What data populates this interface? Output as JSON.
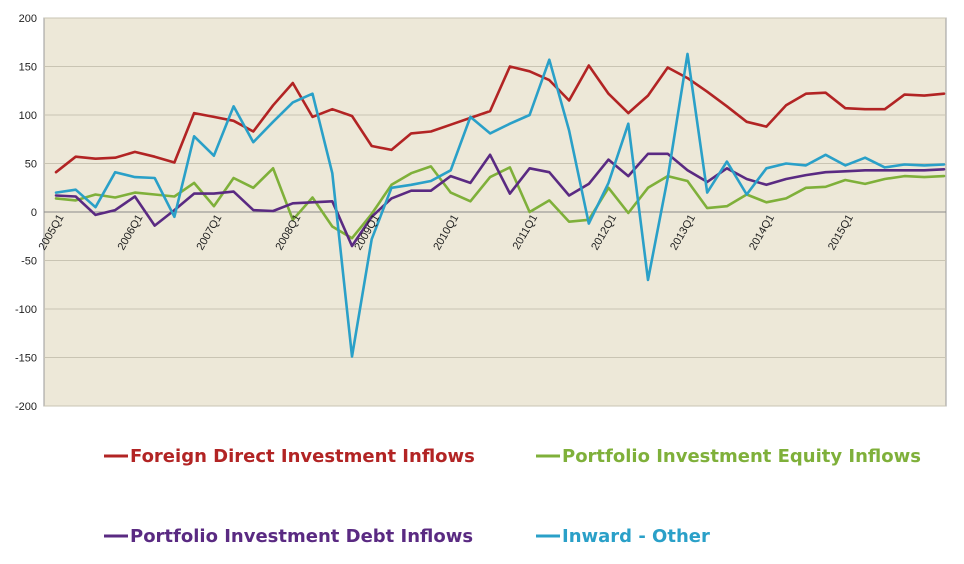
{
  "chart_data": {
    "type": "line",
    "title": "",
    "xlabel": "",
    "ylabel": "",
    "ylim": [
      -200,
      200
    ],
    "yticks": [
      200,
      150,
      100,
      50,
      0,
      -50,
      -100,
      -150,
      -200
    ],
    "grid": true,
    "legend_position": "bottom",
    "plot_background": "#ede8d8",
    "x": [
      "2005Q1",
      "2005Q2",
      "2005Q3",
      "2005Q4",
      "2006Q1",
      "2006Q2",
      "2006Q3",
      "2006Q4",
      "2007Q1",
      "2007Q2",
      "2007Q3",
      "2007Q4",
      "2008Q1",
      "2008Q2",
      "2008Q3",
      "2008Q4",
      "2009Q1",
      "2009Q2",
      "2009Q3",
      "2009Q4",
      "2010Q1",
      "2010Q2",
      "2010Q3",
      "2010Q4",
      "2011Q1",
      "2011Q2",
      "2011Q3",
      "2011Q4",
      "2012Q1",
      "2012Q2",
      "2012Q3",
      "2012Q4",
      "2013Q1",
      "2013Q2",
      "2013Q3",
      "2013Q4",
      "2014Q1",
      "2014Q2",
      "2014Q3",
      "2014Q4",
      "2015Q1",
      "2015Q2",
      "2015Q3",
      "2015Q4",
      "2016Q1",
      "2016Q2"
    ],
    "tick_labels": [
      {
        "index": 0,
        "label": "2005Q1"
      },
      {
        "index": 4,
        "label": "2006Q1"
      },
      {
        "index": 8,
        "label": "2007Q1"
      },
      {
        "index": 12,
        "label": "2008Q1"
      },
      {
        "index": 16,
        "label": "2009Q1"
      },
      {
        "index": 20,
        "label": "2010Q1"
      },
      {
        "index": 24,
        "label": "2011Q1"
      },
      {
        "index": 28,
        "label": "2012Q1"
      },
      {
        "index": 32,
        "label": "2013Q1"
      },
      {
        "index": 36,
        "label": "2014Q1"
      },
      {
        "index": 40,
        "label": "2015Q1"
      }
    ],
    "series": [
      {
        "name": "Foreign Direct Investment Inflows",
        "color": "#b22424",
        "values": [
          41,
          57,
          55,
          56,
          62,
          57,
          51,
          102,
          98,
          94,
          83,
          110,
          133,
          98,
          106,
          99,
          68,
          64,
          81,
          83,
          90,
          97,
          104,
          150,
          145,
          136,
          115,
          151,
          122,
          102,
          120,
          149,
          138,
          124,
          109,
          93,
          88,
          110,
          122,
          123,
          107,
          106,
          106,
          121,
          120,
          122
        ]
      },
      {
        "name": "Portfolio Investment Equity Inflows",
        "color": "#7fb03a",
        "values": [
          14,
          12,
          18,
          15,
          20,
          18,
          16,
          30,
          6,
          35,
          25,
          45,
          -8,
          15,
          -15,
          -27,
          -2,
          28,
          40,
          47,
          20,
          11,
          36,
          46,
          0,
          12,
          -10,
          -8,
          25,
          -1,
          25,
          37,
          32,
          4,
          6,
          18,
          10,
          14,
          25,
          26,
          33,
          29,
          34,
          37,
          36,
          37
        ]
      },
      {
        "name": "Portfolio Investment Debt Inflows",
        "color": "#5a2a82",
        "values": [
          17,
          16,
          -3,
          2,
          16,
          -14,
          2,
          19,
          19,
          21,
          2,
          1,
          9,
          10,
          11,
          -35,
          -5,
          14,
          22,
          22,
          37,
          30,
          59,
          19,
          45,
          41,
          17,
          29,
          54,
          37,
          60,
          60,
          43,
          31,
          45,
          34,
          28,
          34,
          38,
          41,
          42,
          43,
          43,
          43,
          43,
          44
        ]
      },
      {
        "name": "Inward - Other",
        "color": "#2aa0c8",
        "values": [
          20,
          23,
          5,
          41,
          36,
          35,
          -5,
          78,
          58,
          109,
          72,
          93,
          113,
          122,
          40,
          -149,
          -28,
          25,
          28,
          32,
          43,
          98,
          81,
          91,
          100,
          157,
          84,
          -12,
          30,
          91,
          -70,
          35,
          163,
          20,
          52,
          18,
          45,
          50,
          48,
          59,
          48,
          56,
          46,
          49,
          48,
          49
        ]
      }
    ]
  }
}
